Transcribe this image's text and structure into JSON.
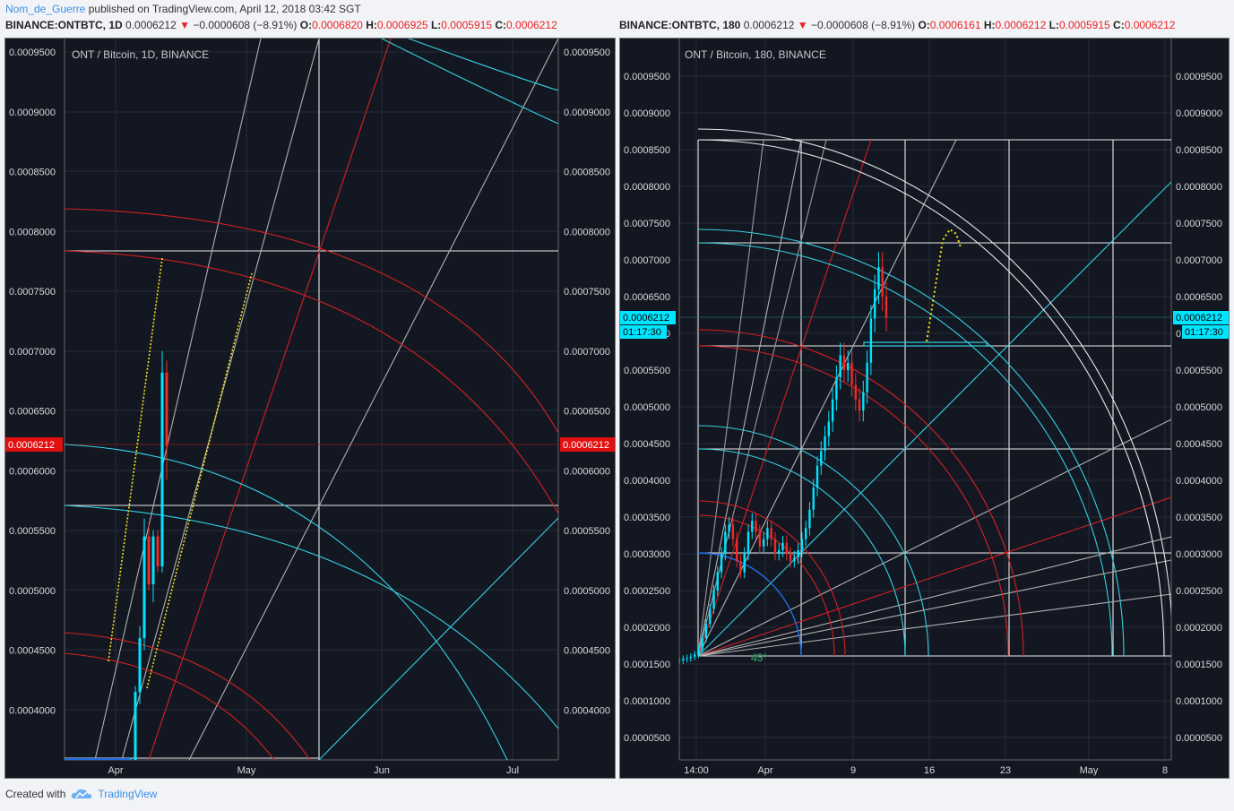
{
  "header": {
    "author": "Nom_de_Guerre",
    "published": " published on TradingView.com, April 12, 2018 03:42 SGT"
  },
  "left_info": {
    "symbol": "BINANCE:ONTBTC, 1D",
    "price": "0.0006212",
    "change": "−0.0000608 (−8.91%)",
    "o_label": "O:",
    "o": "0.0006820",
    "h_label": "H:",
    "h": "0.0006925",
    "l_label": "L:",
    "l": "0.0005915",
    "c_label": "C:",
    "c": "0.0006212"
  },
  "right_info": {
    "symbol": "BINANCE:ONTBTC, 180",
    "price": "0.0006212",
    "change": "−0.0000608 (−8.91%)",
    "o_label": "O:",
    "o": "0.0006161",
    "h_label": "H:",
    "h": "0.0006212",
    "l_label": "L:",
    "l": "0.0005915",
    "c_label": "C:",
    "c": "0.0006212"
  },
  "footer": {
    "created_with": "Created with",
    "brand": "TradingView"
  },
  "colors": {
    "bg": "#131722",
    "up": "#00e5ff",
    "down": "#ef2b2b",
    "white_line": "#e8e8e8",
    "cyan_line": "#35d0e0",
    "red_line": "#d42020",
    "gray_line": "#b0b0b0",
    "yellow": "#f5e31a",
    "blue_arc": "#1e6fe6"
  },
  "chart_data": [
    {
      "type": "candlestick",
      "title": "ONT / Bitcoin, 1D, BINANCE",
      "price_axis": [
        "0.0009500",
        "0.0009000",
        "0.0008500",
        "0.0008000",
        "0.0007500",
        "0.0007000",
        "0.0006500",
        "0.0006000",
        "0.0005500",
        "0.0005000",
        "0.0004500",
        "0.0004000"
      ],
      "price_tags": {
        "left": "0.0006212",
        "right": "0.0006212"
      },
      "time_axis": [
        "Apr",
        "May",
        "Jun",
        "Jul"
      ],
      "candles": [
        {
          "o": 0.000354,
          "h": 0.00036,
          "l": 0.00035,
          "c": 0.000356
        },
        {
          "o": 0.000356,
          "h": 0.00042,
          "l": 0.000352,
          "c": 0.000415
        },
        {
          "o": 0.000415,
          "h": 0.00047,
          "l": 0.000405,
          "c": 0.00046
        },
        {
          "o": 0.00046,
          "h": 0.00056,
          "l": 0.00045,
          "c": 0.000545
        },
        {
          "o": 0.000545,
          "h": 0.000555,
          "l": 0.0005,
          "c": 0.000505
        },
        {
          "o": 0.000505,
          "h": 0.00055,
          "l": 0.00049,
          "c": 0.000545
        },
        {
          "o": 0.000545,
          "h": 0.00055,
          "l": 0.000515,
          "c": 0.00052
        },
        {
          "o": 0.00052,
          "h": 0.0007,
          "l": 0.000515,
          "c": 0.000682
        },
        {
          "o": 0.000682,
          "h": 0.000692,
          "l": 0.000592,
          "c": 0.000621
        }
      ]
    },
    {
      "type": "candlestick",
      "title": "ONT / Bitcoin, 180, BINANCE",
      "price_axis": [
        "0.0009500",
        "0.0009000",
        "0.0008500",
        "0.0008000",
        "0.0007500",
        "0.0007000",
        "0.0006500",
        "0.0006000",
        "0.0005500",
        "0.0005000",
        "0.0004500",
        "0.0004000",
        "0.0003500",
        "0.0003000",
        "0.0002500",
        "0.0002000",
        "0.0001500",
        "0.0001000",
        "0.0000500"
      ],
      "price_tags": {
        "left": "0.0006212",
        "left_time": "01:17:30",
        "right": "0.0006212",
        "right_time": "01:17:30"
      },
      "time_axis": [
        "14:00",
        "Apr",
        "9",
        "16",
        "23",
        "May",
        "8"
      ],
      "angle_label": "45°",
      "closes": [
        0.000155,
        0.000157,
        0.000158,
        0.00016,
        0.000163,
        0.00017,
        0.000185,
        0.000205,
        0.000225,
        0.00025,
        0.000275,
        0.0003,
        0.00033,
        0.00034,
        0.00032,
        0.00029,
        0.000275,
        0.0003,
        0.00033,
        0.000345,
        0.00033,
        0.00031,
        0.00032,
        0.000335,
        0.00032,
        0.0003,
        0.000305,
        0.000315,
        0.0003,
        0.00029,
        0.000295,
        0.000305,
        0.00032,
        0.000335,
        0.00036,
        0.00039,
        0.00042,
        0.00044,
        0.00046,
        0.00048,
        0.00051,
        0.00054,
        0.00057,
        0.00055,
        0.00056,
        0.00053,
        0.00051,
        0.000495,
        0.00052,
        0.00056,
        0.00062,
        0.00066,
        0.00069,
        0.00065,
        0.000621
      ]
    }
  ]
}
